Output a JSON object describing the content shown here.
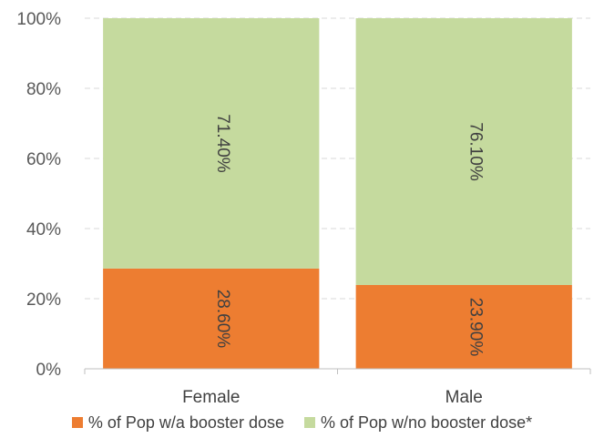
{
  "chart_data": {
    "type": "bar",
    "stacked": true,
    "percent_stacked": true,
    "categories": [
      "Female",
      "Male"
    ],
    "series": [
      {
        "name": "% of Pop w/a booster dose",
        "color": "#ED7D31",
        "values": [
          28.6,
          23.9
        ],
        "labels": [
          "28.60%",
          "23.90%"
        ]
      },
      {
        "name": "% of Pop w/no booster dose*",
        "color": "#C5DA9E",
        "values": [
          71.4,
          76.1
        ],
        "labels": [
          "71.40%",
          "76.10%"
        ]
      }
    ],
    "ylim": [
      0,
      100
    ],
    "yticks": [
      "0%",
      "20%",
      "40%",
      "60%",
      "80%",
      "100%"
    ],
    "grid": true,
    "legend_position": "bottom"
  }
}
